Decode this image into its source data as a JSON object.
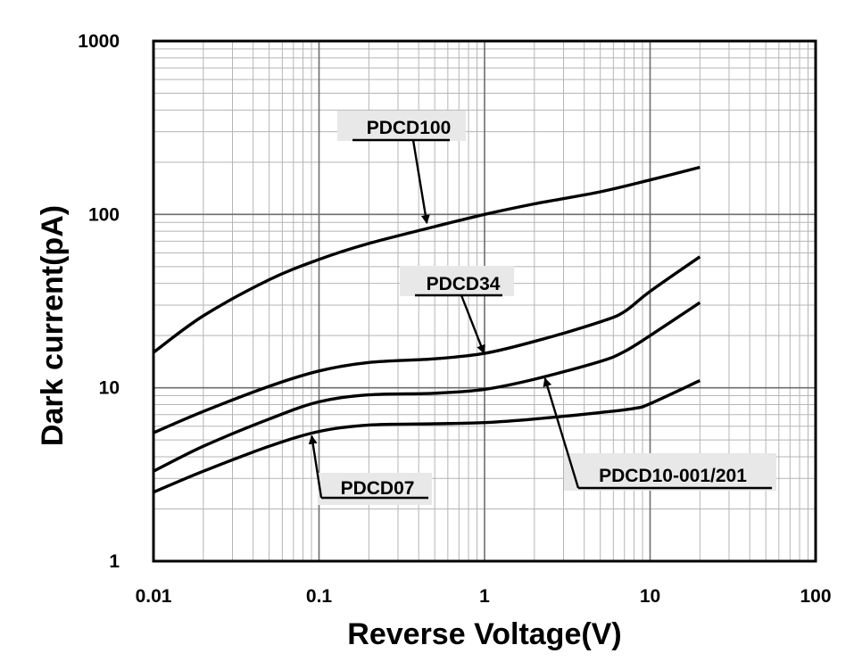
{
  "chart_data": {
    "type": "line",
    "xscale": "log",
    "yscale": "log",
    "xlabel": "Reverse Voltage(V)",
    "ylabel": "Dark current(pA)",
    "xlim": [
      0.01,
      100
    ],
    "ylim": [
      1,
      1000
    ],
    "xticks": [
      0.01,
      0.1,
      1,
      10,
      100
    ],
    "xtick_labels": [
      "0.01",
      "0.1",
      "1",
      "10",
      "100"
    ],
    "yticks": [
      1,
      10,
      100,
      1000
    ],
    "ytick_labels": [
      "1",
      "10",
      "100",
      "1000"
    ],
    "grid": true,
    "series": [
      {
        "name": "PDCD100",
        "x": [
          0.01,
          0.02,
          0.05,
          0.1,
          0.2,
          0.5,
          1,
          2,
          5,
          10,
          20
        ],
        "y": [
          16,
          26,
          42,
          55,
          68,
          85,
          100,
          115,
          135,
          158,
          187
        ]
      },
      {
        "name": "PDCD34",
        "x": [
          0.01,
          0.02,
          0.05,
          0.1,
          0.2,
          0.5,
          1,
          2,
          5,
          7,
          10,
          20
        ],
        "y": [
          5.5,
          7.3,
          10.2,
          12.5,
          14,
          14.7,
          15.8,
          18.5,
          24,
          27.5,
          36,
          57
        ]
      },
      {
        "name": "PDCD10-001/201",
        "x": [
          0.01,
          0.02,
          0.05,
          0.1,
          0.2,
          0.5,
          1,
          2,
          5,
          7,
          10,
          20
        ],
        "y": [
          3.3,
          4.6,
          6.6,
          8.3,
          9.1,
          9.3,
          9.8,
          11.2,
          14.2,
          16.2,
          20,
          31
        ]
      },
      {
        "name": "PDCD07",
        "x": [
          0.01,
          0.02,
          0.05,
          0.1,
          0.2,
          0.5,
          1,
          2,
          5,
          8,
          10,
          20
        ],
        "y": [
          2.5,
          3.3,
          4.6,
          5.6,
          6.1,
          6.2,
          6.3,
          6.6,
          7.2,
          7.6,
          8.1,
          11
        ]
      }
    ],
    "annotations": [
      {
        "text": "PDCD100",
        "series": "PDCD100",
        "points_to": [
          0.45,
          87
        ]
      },
      {
        "text": "PDCD34",
        "series": "PDCD34",
        "points_to": [
          1.0,
          15.5
        ]
      },
      {
        "text": "PDCD10-001/201",
        "series": "PDCD10-001/201",
        "points_to": [
          2.3,
          11.6
        ]
      },
      {
        "text": "PDCD07",
        "series": "PDCD07",
        "points_to": [
          0.09,
          5.4
        ]
      }
    ]
  }
}
